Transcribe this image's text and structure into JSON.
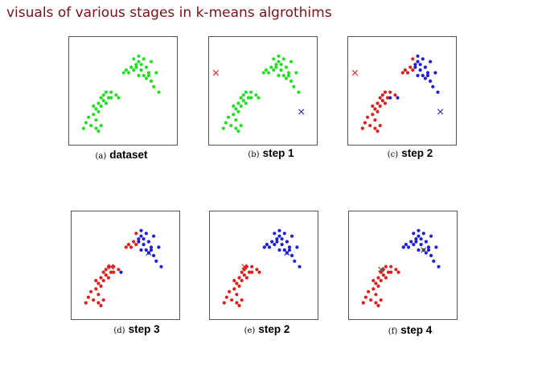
{
  "title": "visuals of various stages in k-means algrothims",
  "colors": {
    "green": "#22dd22",
    "red": "#dd1f1f",
    "blue": "#1d1ed6",
    "title": "#7a1018",
    "mixed_centroid": "#555555"
  },
  "panels": [
    {
      "letter": "(a)",
      "name": "dataset",
      "coloring": "all-green",
      "centroids": []
    },
    {
      "letter": "(b)",
      "name": "step 1",
      "coloring": "all-green",
      "centroids": [
        {
          "color": "red",
          "x": -1.6,
          "y": 1.0
        },
        {
          "color": "blue",
          "x": 1.8,
          "y": -0.4
        }
      ]
    },
    {
      "letter": "(c)",
      "name": "step 2",
      "coloring": "split-c",
      "centroids": [
        {
          "color": "red",
          "x": -1.6,
          "y": 1.0
        },
        {
          "color": "blue",
          "x": 1.8,
          "y": -0.4
        }
      ]
    },
    {
      "letter": "(d)",
      "name": "step 3",
      "coloring": "split-d",
      "centroids": [
        {
          "color": "red",
          "x": -0.3,
          "y": 0.3
        },
        {
          "color": "blue",
          "x": 1.2,
          "y": 0.8
        }
      ]
    },
    {
      "letter": "(e)",
      "name": "step 2",
      "coloring": "split-true",
      "centroids": [
        {
          "color": "red",
          "x": -0.5,
          "y": 0.3
        },
        {
          "color": "blue",
          "x": 1.2,
          "y": 0.8
        }
      ]
    },
    {
      "letter": "(f)",
      "name": "step 4",
      "coloring": "split-true",
      "centroids": [
        {
          "color": "mixed",
          "x": -0.6,
          "y": 0.2
        },
        {
          "color": "mixed",
          "x": 1.1,
          "y": 0.9
        }
      ]
    }
  ],
  "clusters": {
    "lower_left": [
      [
        -1.3,
        -1.0
      ],
      [
        -1.2,
        -0.8
      ],
      [
        -1.1,
        -0.6
      ],
      [
        -1.0,
        -0.9
      ],
      [
        -0.9,
        -0.5
      ],
      [
        -0.9,
        -0.2
      ],
      [
        -0.8,
        -0.7
      ],
      [
        -0.8,
        -0.3
      ],
      [
        -0.7,
        -0.1
      ],
      [
        -0.7,
        -0.4
      ],
      [
        -0.6,
        0.1
      ],
      [
        -0.6,
        -0.2
      ],
      [
        -0.5,
        0.2
      ],
      [
        -0.5,
        0.0
      ],
      [
        -0.4,
        -0.1
      ],
      [
        -0.4,
        0.3
      ],
      [
        -0.3,
        0.1
      ],
      [
        -0.2,
        0.3
      ],
      [
        -0.2,
        0.1
      ],
      [
        0.0,
        0.2
      ],
      [
        0.1,
        0.1
      ],
      [
        -0.8,
        -1.0
      ],
      [
        -0.7,
        -1.1
      ],
      [
        -0.6,
        -0.9
      ]
    ],
    "upper_right": [
      [
        0.5,
        1.0
      ],
      [
        0.6,
        1.2
      ],
      [
        0.7,
        1.1
      ],
      [
        0.7,
        1.5
      ],
      [
        0.8,
        1.3
      ],
      [
        0.8,
        1.2
      ],
      [
        0.9,
        1.4
      ],
      [
        0.9,
        1.6
      ],
      [
        1.0,
        1.1
      ],
      [
        1.0,
        1.3
      ],
      [
        1.1,
        0.9
      ],
      [
        1.1,
        1.5
      ],
      [
        1.2,
        1.2
      ],
      [
        1.3,
        1.0
      ],
      [
        1.3,
        0.9
      ],
      [
        1.4,
        1.4
      ],
      [
        1.4,
        0.7
      ],
      [
        1.5,
        0.5
      ],
      [
        1.6,
        1.0
      ],
      [
        1.7,
        0.3
      ],
      [
        0.3,
        1.0
      ],
      [
        0.4,
        1.1
      ],
      [
        0.9,
        0.9
      ],
      [
        1.2,
        0.8
      ]
    ]
  }
}
